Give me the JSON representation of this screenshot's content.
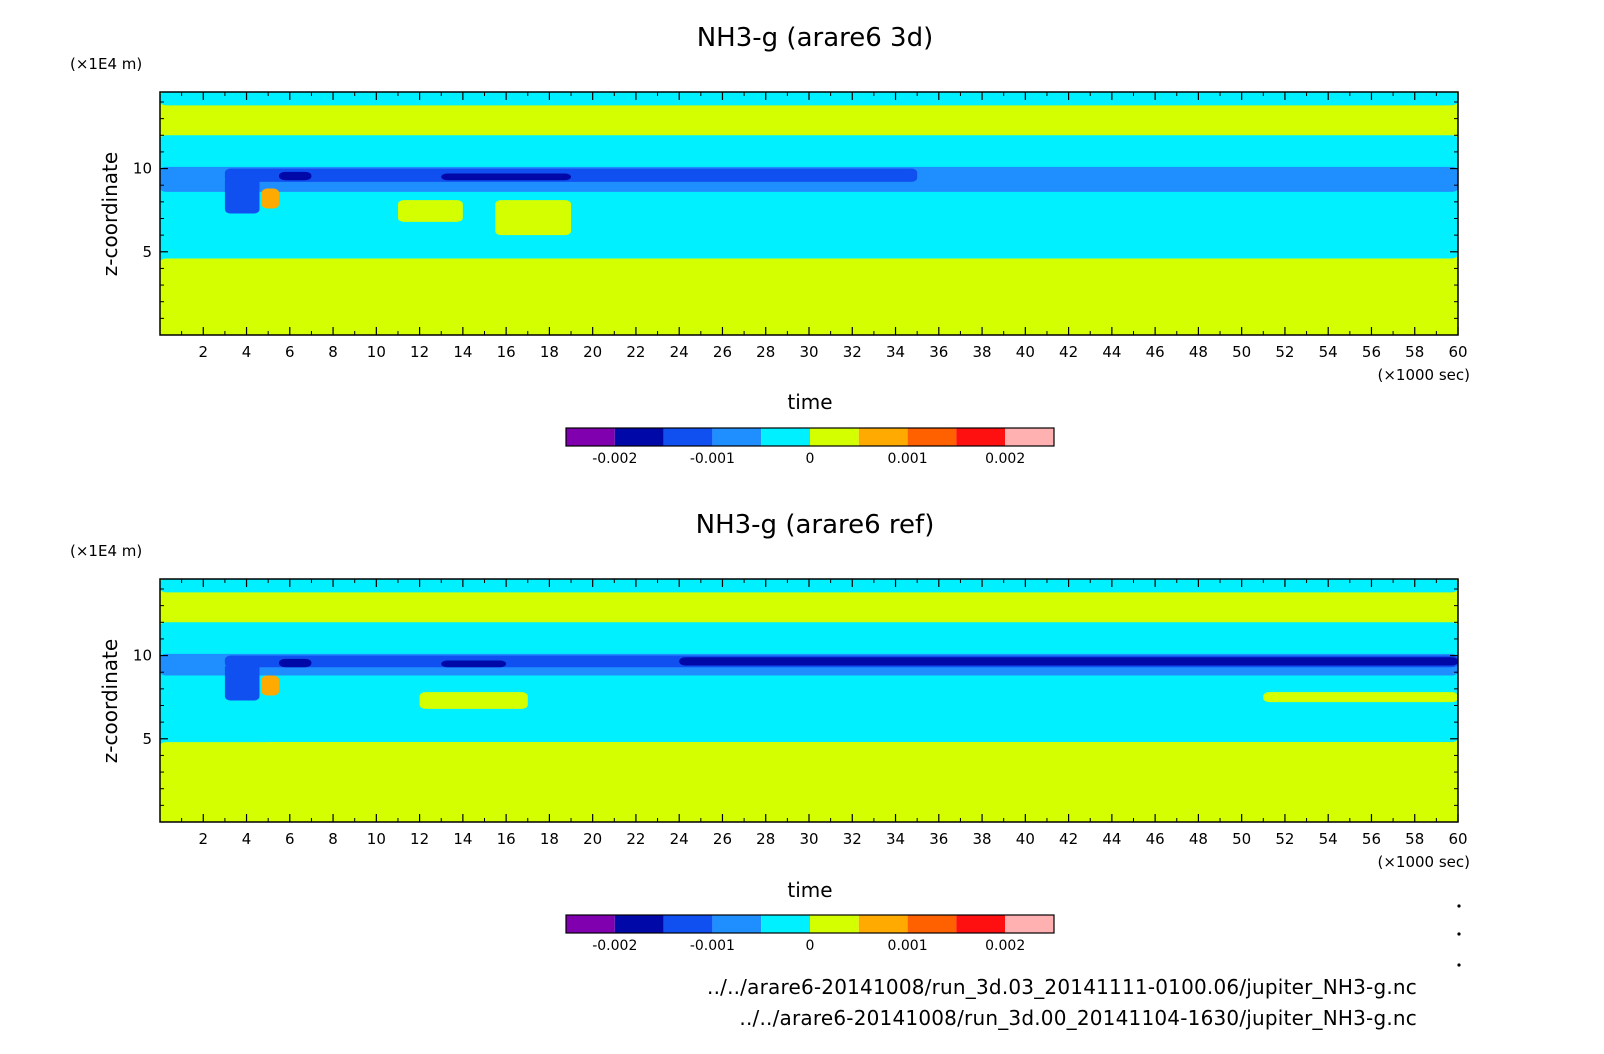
{
  "figure": {
    "footer_paths": [
      "../../arare6-20141008/run_3d.03_20141111-0100.06/jupiter_NH3-g.nc",
      "../../arare6-20141008/run_3d.00_20141104-1630/jupiter_NH3-g.nc"
    ]
  },
  "chart_data": [
    {
      "type": "heatmap",
      "title": "NH3-g (arare6 3d)",
      "xlabel": "time",
      "ylabel": "z-coordinate",
      "x_unit": "(×1000 sec)",
      "y_unit": "(×1E4 m)",
      "xlim": [
        0,
        60
      ],
      "ylim": [
        0,
        14.6
      ],
      "x_ticks": [
        2,
        4,
        6,
        8,
        10,
        12,
        14,
        16,
        18,
        20,
        22,
        24,
        26,
        28,
        30,
        32,
        34,
        36,
        38,
        40,
        42,
        44,
        46,
        48,
        50,
        52,
        54,
        56,
        58,
        60
      ],
      "y_ticks": [
        5,
        10
      ],
      "colorbar": {
        "levels": [
          -0.0025,
          -0.002,
          -0.0015,
          -0.001,
          -0.0005,
          0,
          0.0005,
          0.001,
          0.0015,
          0.002,
          0.0025
        ],
        "colors": [
          "#8000b0",
          "#0008a8",
          "#1050f0",
          "#1f8fff",
          "#00f0ff",
          "#d4ff00",
          "#ffaa00",
          "#ff6000",
          "#ff1010",
          "#ffb0b0"
        ],
        "tick_labels": [
          {
            "value": -0.002,
            "label": "-0.002"
          },
          {
            "value": -0.001,
            "label": "-0.001"
          },
          {
            "value": 0,
            "label": "0"
          },
          {
            "value": 0.001,
            "label": "0.001"
          },
          {
            "value": 0.002,
            "label": "0.002"
          }
        ]
      },
      "field": {
        "background": 0.0001,
        "regions": [
          {
            "x": [
              0,
              60
            ],
            "y": [
              13.8,
              14.6
            ],
            "v": -0.0002
          },
          {
            "x": [
              0,
              60
            ],
            "y": [
              4.6,
              12.0
            ],
            "v": -0.0002
          },
          {
            "x": [
              0,
              60
            ],
            "y": [
              8.6,
              10.1
            ],
            "v": -0.0007
          },
          {
            "x": [
              3,
              35
            ],
            "y": [
              9.2,
              10.0
            ],
            "v": -0.0012
          },
          {
            "x": [
              5.5,
              7
            ],
            "y": [
              9.3,
              9.8
            ],
            "v": -0.002
          },
          {
            "x": [
              13,
              19
            ],
            "y": [
              9.3,
              9.7
            ],
            "v": -0.0017
          },
          {
            "x": [
              3,
              4.6
            ],
            "y": [
              7.3,
              9.5
            ],
            "v": -0.0012
          },
          {
            "x": [
              4.7,
              5.5
            ],
            "y": [
              7.6,
              8.8
            ],
            "v": 0.0007
          },
          {
            "x": [
              11,
              14
            ],
            "y": [
              6.8,
              8.1
            ],
            "v": 0.0001
          },
          {
            "x": [
              15.5,
              19
            ],
            "y": [
              6.0,
              8.1
            ],
            "v": 0.0001
          },
          {
            "x": [
              0,
              5
            ],
            "y": [
              0,
              5.5
            ],
            "v": -0.0002
          },
          {
            "x": [
              0,
              60
            ],
            "y": [
              0,
              4.6
            ],
            "v": 0.0001
          }
        ]
      }
    },
    {
      "type": "heatmap",
      "title": "NH3-g (arare6 ref)",
      "xlabel": "time",
      "ylabel": "z-coordinate",
      "x_unit": "(×1000 sec)",
      "y_unit": "(×1E4 m)",
      "xlim": [
        0,
        60
      ],
      "ylim": [
        0,
        14.6
      ],
      "x_ticks": [
        2,
        4,
        6,
        8,
        10,
        12,
        14,
        16,
        18,
        20,
        22,
        24,
        26,
        28,
        30,
        32,
        34,
        36,
        38,
        40,
        42,
        44,
        46,
        48,
        50,
        52,
        54,
        56,
        58,
        60
      ],
      "y_ticks": [
        5,
        10
      ],
      "colorbar": {
        "levels": [
          -0.0025,
          -0.002,
          -0.0015,
          -0.001,
          -0.0005,
          0,
          0.0005,
          0.001,
          0.0015,
          0.002,
          0.0025
        ],
        "colors": [
          "#8000b0",
          "#0008a8",
          "#1050f0",
          "#1f8fff",
          "#00f0ff",
          "#d4ff00",
          "#ffaa00",
          "#ff6000",
          "#ff1010",
          "#ffb0b0"
        ],
        "tick_labels": [
          {
            "value": -0.002,
            "label": "-0.002"
          },
          {
            "value": -0.001,
            "label": "-0.001"
          },
          {
            "value": 0,
            "label": "0"
          },
          {
            "value": 0.001,
            "label": "0.001"
          },
          {
            "value": 0.002,
            "label": "0.002"
          }
        ]
      },
      "field": {
        "background": 0.0001,
        "regions": [
          {
            "x": [
              0,
              60
            ],
            "y": [
              13.8,
              14.6
            ],
            "v": -0.0002
          },
          {
            "x": [
              0,
              60
            ],
            "y": [
              4.8,
              12.0
            ],
            "v": -0.0002
          },
          {
            "x": [
              0,
              60
            ],
            "y": [
              8.8,
              10.1
            ],
            "v": -0.0007
          },
          {
            "x": [
              3,
              60
            ],
            "y": [
              9.3,
              10.0
            ],
            "v": -0.0012
          },
          {
            "x": [
              5.5,
              7
            ],
            "y": [
              9.3,
              9.8
            ],
            "v": -0.002
          },
          {
            "x": [
              13,
              16
            ],
            "y": [
              9.3,
              9.7
            ],
            "v": -0.0017
          },
          {
            "x": [
              24,
              60
            ],
            "y": [
              9.4,
              9.9
            ],
            "v": -0.0016
          },
          {
            "x": [
              3,
              4.6
            ],
            "y": [
              7.3,
              9.5
            ],
            "v": -0.0012
          },
          {
            "x": [
              4.7,
              5.5
            ],
            "y": [
              7.6,
              8.8
            ],
            "v": 0.0007
          },
          {
            "x": [
              51,
              60
            ],
            "y": [
              7.2,
              7.8
            ],
            "v": 0.0001
          },
          {
            "x": [
              12,
              17
            ],
            "y": [
              6.8,
              7.8
            ],
            "v": 0.0001
          },
          {
            "x": [
              0,
              5
            ],
            "y": [
              0,
              5.5
            ],
            "v": -0.0002
          },
          {
            "x": [
              0,
              60
            ],
            "y": [
              0,
              4.8
            ],
            "v": 0.0001
          }
        ]
      }
    }
  ]
}
